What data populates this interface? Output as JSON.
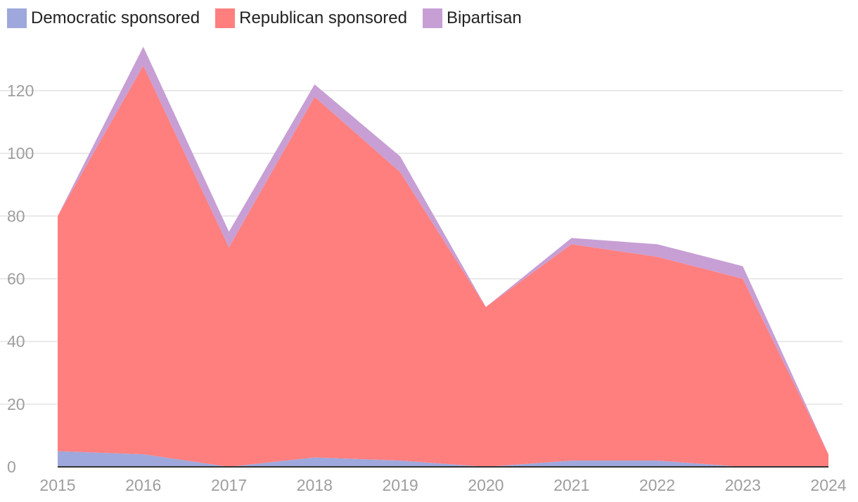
{
  "chart_data": {
    "type": "area",
    "stacked": true,
    "x": [
      "2015",
      "2016",
      "2017",
      "2018",
      "2019",
      "2020",
      "2021",
      "2022",
      "2023",
      "2024"
    ],
    "series": [
      {
        "name": "Democratic sponsored",
        "color": "#9ea8dc",
        "values": [
          5,
          4,
          0,
          3,
          2,
          0,
          2,
          2,
          0,
          0
        ]
      },
      {
        "name": "Republican sponsored",
        "color": "#ff7f7f",
        "values": [
          75,
          124,
          70,
          115,
          92,
          51,
          69,
          65,
          60,
          4
        ]
      },
      {
        "name": "Bipartisan",
        "color": "#c79fd4",
        "values": [
          0,
          6,
          5,
          4,
          5,
          0,
          2,
          4,
          4,
          0
        ]
      }
    ],
    "ylim": [
      0,
      135
    ],
    "yticks": [
      "0",
      "20",
      "40",
      "60",
      "80",
      "100",
      "120"
    ],
    "grid": true,
    "legend": "top-left",
    "title": "",
    "xlabel": "",
    "ylabel": ""
  }
}
